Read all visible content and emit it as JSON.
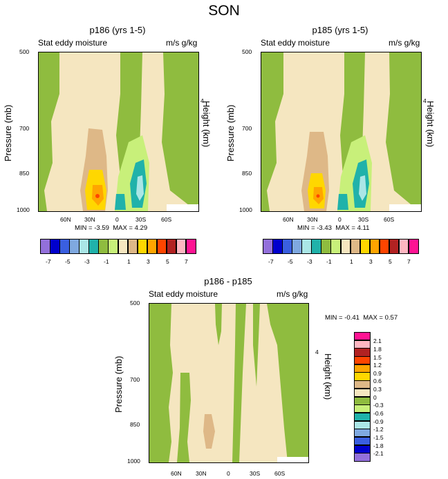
{
  "title": "SON",
  "colors": {
    "hbar": [
      "#9370db",
      "#0000cd",
      "#3a5fe0",
      "#7fa9e0",
      "#aae6e6",
      "#20b2aa",
      "#8fbc3f",
      "#c8f07a",
      "#f5e6c0",
      "#deb887",
      "#ffd700",
      "#ffa500",
      "#ff4500",
      "#b22222",
      "#ffb6c1",
      "#ff1493"
    ],
    "vbar": [
      "#9370db",
      "#0000cd",
      "#3a5fe0",
      "#7fa9e0",
      "#aae6e6",
      "#20b2aa",
      "#c8f07a",
      "#8fbc3f",
      "#f5e6c0",
      "#deb887",
      "#ffd700",
      "#ffa500",
      "#ff4500",
      "#b22222",
      "#ffb6c1",
      "#ff1493"
    ]
  },
  "chart_data": [
    {
      "type": "heatmap",
      "title": "p186 (yrs 1-5)",
      "left_label": "Stat eddy moisture",
      "right_label": "m/s g/kg",
      "ylabel": "Pressure (mb)",
      "ylabel_right": "Height (km)",
      "y_ticks": [
        "500",
        "700",
        "850",
        "1000"
      ],
      "y_right_ticks": [
        "4"
      ],
      "x_ticks": [
        "60N",
        "30N",
        "0",
        "30S",
        "60S"
      ],
      "stats": {
        "min_label": "MIN =",
        "min": "-3.59",
        "max_label": "MAX =",
        "max": "4.29"
      },
      "colorbar_labels": [
        "-7",
        "-5",
        "-3",
        "-1",
        "1",
        "3",
        "5",
        "7"
      ]
    },
    {
      "type": "heatmap",
      "title": "p185 (yrs 1-5)",
      "left_label": "Stat eddy moisture",
      "right_label": "m/s g/kg",
      "ylabel": "Pressure (mb)",
      "ylabel_right": "Height (km)",
      "y_ticks": [
        "500",
        "700",
        "850",
        "1000"
      ],
      "y_right_ticks": [
        "4"
      ],
      "x_ticks": [
        "60N",
        "30N",
        "0",
        "30S",
        "60S"
      ],
      "stats": {
        "min_label": "MIN =",
        "min": "-3.43",
        "max_label": "MAX =",
        "max": "4.11"
      },
      "colorbar_labels": [
        "-7",
        "-5",
        "-3",
        "-1",
        "1",
        "3",
        "5",
        "7"
      ]
    },
    {
      "type": "heatmap",
      "title": "p186 - p185",
      "left_label": "Stat eddy moisture",
      "right_label": "m/s g/kg",
      "ylabel": "Pressure (mb)",
      "ylabel_right": "Height (km)",
      "y_ticks": [
        "500",
        "700",
        "850",
        "1000"
      ],
      "y_right_ticks": [
        "4"
      ],
      "x_ticks": [
        "60N",
        "30N",
        "0",
        "30S",
        "60S"
      ],
      "stats": {
        "min_label": "MIN =",
        "min": "-0.41",
        "max_label": "MAX =",
        "max": "0.57"
      },
      "colorbar_labels": [
        "2.1",
        "1.8",
        "1.5",
        "1.2",
        "0.9",
        "0.6",
        "0.3",
        "0",
        "-0.3",
        "-0.6",
        "-0.9",
        "-1.2",
        "-1.5",
        "-1.8",
        "-2.1"
      ]
    }
  ]
}
